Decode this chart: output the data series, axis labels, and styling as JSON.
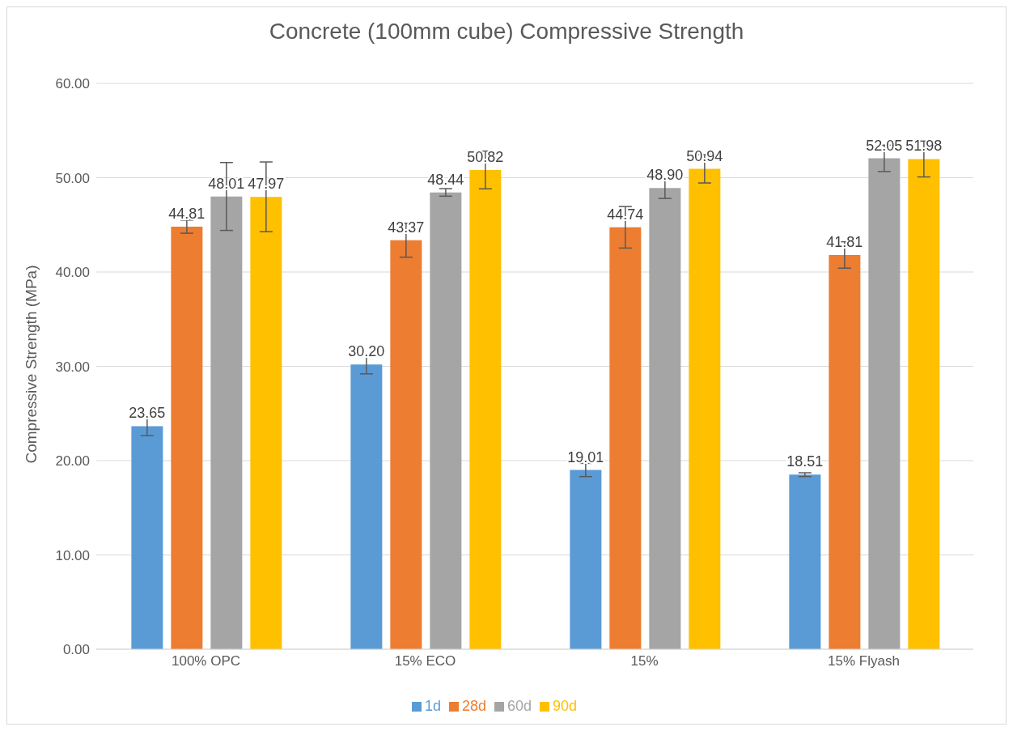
{
  "chart_data": {
    "type": "bar",
    "title": "Concrete (100mm cube) Compressive Strength",
    "ylabel": "Compressive Strength (MPa)",
    "categories": [
      "100% OPC",
      "15% ECO",
      "15%",
      "15% Flyash"
    ],
    "series": [
      {
        "name": "1d",
        "color": "#5b9bd5",
        "values": [
          23.65,
          30.2,
          19.01,
          18.51
        ],
        "value_labels": [
          "23.65",
          "30.20",
          "19.01",
          "18.51"
        ],
        "errors": [
          1.0,
          1.0,
          0.7,
          0.2
        ]
      },
      {
        "name": "28d",
        "color": "#ed7d31",
        "values": [
          44.81,
          43.37,
          44.74,
          41.81
        ],
        "value_labels": [
          "44.81",
          "43.37",
          "44.74",
          "41.81"
        ],
        "errors": [
          0.7,
          1.8,
          2.2,
          1.4
        ]
      },
      {
        "name": "60d",
        "color": "#a5a5a5",
        "values": [
          48.01,
          48.44,
          48.9,
          52.05
        ],
        "value_labels": [
          "48.01",
          "48.44",
          "48.90",
          "52.05"
        ],
        "errors": [
          3.6,
          0.4,
          1.1,
          1.4
        ]
      },
      {
        "name": "90d",
        "color": "#ffc000",
        "values": [
          47.97,
          50.82,
          50.94,
          51.98
        ],
        "value_labels": [
          "47.97",
          "50.82",
          "50.94",
          "51.98"
        ],
        "errors": [
          3.7,
          2.0,
          1.5,
          1.9
        ]
      }
    ],
    "ylim": [
      0,
      60
    ],
    "yticks": [
      {
        "value": 0,
        "label": "0.00"
      },
      {
        "value": 10,
        "label": "10.00"
      },
      {
        "value": 20,
        "label": "20.00"
      },
      {
        "value": 30,
        "label": "30.00"
      },
      {
        "value": 40,
        "label": "40.00"
      },
      {
        "value": 50,
        "label": "50.00"
      },
      {
        "value": 60,
        "label": "60.00"
      }
    ],
    "grid": "y",
    "legend": "bottom"
  }
}
